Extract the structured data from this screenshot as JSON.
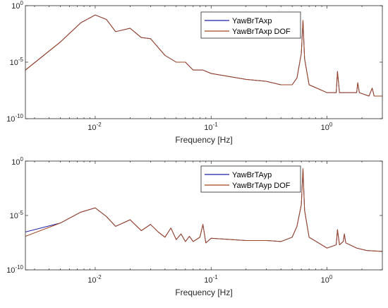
{
  "chart_data": [
    {
      "type": "line",
      "xscale": "log",
      "yscale": "log",
      "xlim": [
        0.0025,
        3.0
      ],
      "ylim": [
        1e-10,
        1
      ],
      "xlabel": "Frequency [Hz]",
      "ylabel": "",
      "title": "",
      "xticks": [
        {
          "value": 0.01,
          "base": "10",
          "exp": "-2"
        },
        {
          "value": 0.1,
          "base": "10",
          "exp": "-1"
        },
        {
          "value": 1,
          "base": "10",
          "exp": "0"
        }
      ],
      "yticks": [
        {
          "value": 1,
          "base": "10",
          "exp": "0"
        },
        {
          "value": 1e-05,
          "base": "10",
          "exp": "-5"
        },
        {
          "value": 1e-10,
          "base": "10",
          "exp": "-10"
        }
      ],
      "legend_position": "top-right",
      "series": [
        {
          "name": "YawBrTAxp",
          "color": "#1f1fa8",
          "points": [
            [
              0.0025,
              2e-06
            ],
            [
              0.005,
              0.0006
            ],
            [
              0.0075,
              0.03
            ],
            [
              0.01,
              0.15
            ],
            [
              0.0125,
              0.06
            ],
            [
              0.015,
              0.005
            ],
            [
              0.02,
              0.01
            ],
            [
              0.025,
              0.0015
            ],
            [
              0.03,
              0.0012
            ],
            [
              0.04,
              4e-05
            ],
            [
              0.05,
              1e-05
            ],
            [
              0.06,
              1e-05
            ],
            [
              0.07,
              2e-06
            ],
            [
              0.085,
              2e-06
            ],
            [
              0.1,
              1e-06
            ],
            [
              0.2,
              3e-07
            ],
            [
              0.3,
              2e-07
            ],
            [
              0.4,
              1e-07
            ],
            [
              0.5,
              1e-07
            ],
            [
              0.55,
              4e-07
            ],
            [
              0.6,
              6e-05
            ],
            [
              0.62,
              0.05
            ],
            [
              0.64,
              2e-05
            ],
            [
              0.7,
              1e-07
            ],
            [
              1.0,
              2e-08
            ],
            [
              1.2,
              2e-08
            ],
            [
              1.23,
              1.5e-06
            ],
            [
              1.28,
              2e-08
            ],
            [
              1.6,
              2e-08
            ],
            [
              1.8,
              2e-08
            ],
            [
              1.84,
              1.5e-07
            ],
            [
              1.9,
              2e-08
            ],
            [
              2.3,
              1e-08
            ],
            [
              2.45,
              5e-08
            ],
            [
              2.55,
              1e-08
            ],
            [
              3.0,
              1e-08
            ]
          ]
        },
        {
          "name": "YawBrTAxp DOF",
          "color": "#a0461f",
          "points": [
            [
              0.0025,
              2e-06
            ],
            [
              0.005,
              0.0006
            ],
            [
              0.0075,
              0.03
            ],
            [
              0.01,
              0.15
            ],
            [
              0.0125,
              0.06
            ],
            [
              0.015,
              0.005
            ],
            [
              0.02,
              0.01
            ],
            [
              0.025,
              0.0015
            ],
            [
              0.03,
              0.0012
            ],
            [
              0.04,
              4e-05
            ],
            [
              0.05,
              1e-05
            ],
            [
              0.06,
              1e-05
            ],
            [
              0.07,
              2e-06
            ],
            [
              0.085,
              2e-06
            ],
            [
              0.1,
              1e-06
            ],
            [
              0.2,
              3e-07
            ],
            [
              0.3,
              2e-07
            ],
            [
              0.4,
              1e-07
            ],
            [
              0.5,
              1e-07
            ],
            [
              0.55,
              4e-07
            ],
            [
              0.6,
              6e-05
            ],
            [
              0.62,
              0.05
            ],
            [
              0.64,
              2e-05
            ],
            [
              0.7,
              1e-07
            ],
            [
              1.0,
              2e-08
            ],
            [
              1.2,
              2e-08
            ],
            [
              1.23,
              1.5e-06
            ],
            [
              1.28,
              2e-08
            ],
            [
              1.6,
              2e-08
            ],
            [
              1.8,
              2e-08
            ],
            [
              1.84,
              1.5e-07
            ],
            [
              1.9,
              2e-08
            ],
            [
              2.3,
              1e-08
            ],
            [
              2.45,
              5e-08
            ],
            [
              2.55,
              1e-08
            ],
            [
              3.0,
              1e-08
            ]
          ]
        }
      ]
    },
    {
      "type": "line",
      "xscale": "log",
      "yscale": "log",
      "xlim": [
        0.0025,
        3.0
      ],
      "ylim": [
        1e-10,
        1
      ],
      "xlabel": "Frequency [Hz]",
      "ylabel": "",
      "title": "",
      "xticks": [
        {
          "value": 0.01,
          "base": "10",
          "exp": "-2"
        },
        {
          "value": 0.1,
          "base": "10",
          "exp": "-1"
        },
        {
          "value": 1,
          "base": "10",
          "exp": "0"
        }
      ],
      "yticks": [
        {
          "value": 1,
          "base": "10",
          "exp": "0"
        },
        {
          "value": 1e-05,
          "base": "10",
          "exp": "-5"
        },
        {
          "value": 1e-10,
          "base": "10",
          "exp": "-10"
        }
      ],
      "legend_position": "top-right",
      "series": [
        {
          "name": "YawBrTAyp",
          "color": "#1f1fa8",
          "points": [
            [
              0.0025,
              3e-07
            ],
            [
              0.005,
              2e-06
            ],
            [
              0.0075,
              2e-05
            ],
            [
              0.01,
              5e-05
            ],
            [
              0.0125,
              8e-06
            ],
            [
              0.015,
              1e-06
            ],
            [
              0.02,
              4e-06
            ],
            [
              0.025,
              4e-07
            ],
            [
              0.03,
              1.5e-06
            ],
            [
              0.035,
              3e-07
            ],
            [
              0.04,
              1e-07
            ],
            [
              0.045,
              7e-07
            ],
            [
              0.05,
              6e-08
            ],
            [
              0.055,
              2e-07
            ],
            [
              0.06,
              4e-08
            ],
            [
              0.065,
              1.2e-07
            ],
            [
              0.07,
              4e-08
            ],
            [
              0.08,
              1e-07
            ],
            [
              0.085,
              1.5e-06
            ],
            [
              0.09,
              3e-08
            ],
            [
              0.1,
              8e-08
            ],
            [
              0.2,
              5e-08
            ],
            [
              0.3,
              5e-08
            ],
            [
              0.4,
              4e-08
            ],
            [
              0.5,
              1e-07
            ],
            [
              0.55,
              1e-06
            ],
            [
              0.6,
              0.0001
            ],
            [
              0.62,
              0.2
            ],
            [
              0.64,
              3e-05
            ],
            [
              0.7,
              1e-07
            ],
            [
              1.0,
              1e-08
            ],
            [
              1.2,
              2e-08
            ],
            [
              1.23,
              5e-07
            ],
            [
              1.28,
              2e-08
            ],
            [
              1.38,
              4e-08
            ],
            [
              1.41,
              2e-07
            ],
            [
              1.45,
              3e-08
            ],
            [
              1.8,
              1e-08
            ],
            [
              2.2,
              6e-09
            ],
            [
              3.0,
              5e-09
            ]
          ]
        },
        {
          "name": "YawBrTAyp DOF",
          "color": "#a0461f",
          "points": [
            [
              0.0025,
              1.2e-07
            ],
            [
              0.005,
              2e-06
            ],
            [
              0.0075,
              2e-05
            ],
            [
              0.01,
              5e-05
            ],
            [
              0.0125,
              8e-06
            ],
            [
              0.015,
              1e-06
            ],
            [
              0.02,
              4e-06
            ],
            [
              0.025,
              4e-07
            ],
            [
              0.03,
              1.5e-06
            ],
            [
              0.035,
              3e-07
            ],
            [
              0.04,
              1e-07
            ],
            [
              0.045,
              7e-07
            ],
            [
              0.05,
              6e-08
            ],
            [
              0.055,
              2e-07
            ],
            [
              0.06,
              4e-08
            ],
            [
              0.065,
              1.2e-07
            ],
            [
              0.07,
              4e-08
            ],
            [
              0.08,
              1e-07
            ],
            [
              0.085,
              1.5e-06
            ],
            [
              0.09,
              3e-08
            ],
            [
              0.1,
              8e-08
            ],
            [
              0.2,
              5e-08
            ],
            [
              0.3,
              5e-08
            ],
            [
              0.4,
              4e-08
            ],
            [
              0.5,
              1e-07
            ],
            [
              0.55,
              1e-06
            ],
            [
              0.6,
              0.0001
            ],
            [
              0.62,
              0.2
            ],
            [
              0.64,
              3e-05
            ],
            [
              0.7,
              1e-07
            ],
            [
              1.0,
              1e-08
            ],
            [
              1.2,
              2e-08
            ],
            [
              1.23,
              5e-07
            ],
            [
              1.28,
              2e-08
            ],
            [
              1.38,
              4e-08
            ],
            [
              1.41,
              2e-07
            ],
            [
              1.45,
              3e-08
            ],
            [
              1.8,
              1e-08
            ],
            [
              2.2,
              6e-09
            ],
            [
              3.0,
              5e-09
            ]
          ]
        }
      ]
    }
  ]
}
